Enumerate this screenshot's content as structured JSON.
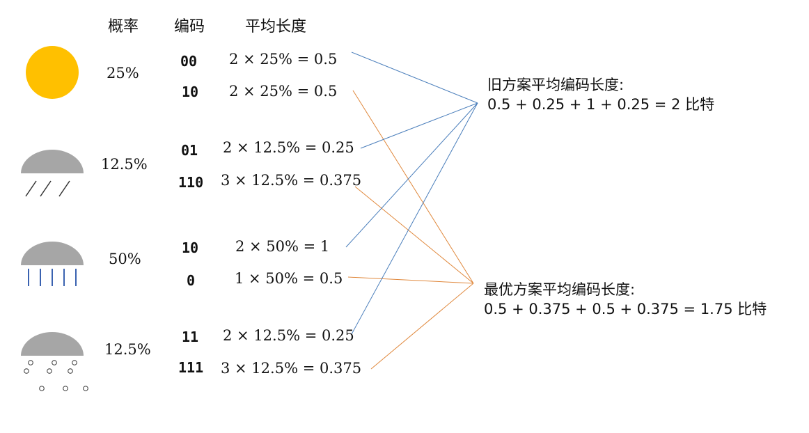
{
  "headers": {
    "probability": "概率",
    "code": "编码",
    "avg_length": "平均长度"
  },
  "weather": [
    {
      "icon": "sun-icon",
      "probability": "25%"
    },
    {
      "icon": "light-rain-icon",
      "probability": "12.5%"
    },
    {
      "icon": "heavy-rain-icon",
      "probability": "50%"
    },
    {
      "icon": "snow-icon",
      "probability": "12.5%"
    }
  ],
  "rows": [
    {
      "code": "00",
      "formula": "2 × 25% = 0.5",
      "scheme": "old"
    },
    {
      "code": "10",
      "formula": "2 × 25% = 0.5",
      "scheme": "optimal"
    },
    {
      "code": "01",
      "formula": "2 × 12.5% = 0.25",
      "scheme": "old"
    },
    {
      "code": "110",
      "formula": "3 × 12.5% = 0.375",
      "scheme": "optimal"
    },
    {
      "code": "10",
      "formula": "2 × 50% = 1",
      "scheme": "old"
    },
    {
      "code": "0",
      "formula": "1 × 50% = 0.5",
      "scheme": "optimal"
    },
    {
      "code": "11",
      "formula": "2 × 12.5% = 0.25",
      "scheme": "old"
    },
    {
      "code": "111",
      "formula": "3 × 12.5% = 0.375",
      "scheme": "optimal"
    }
  ],
  "old_scheme": {
    "title": "旧方案平均编码长度:",
    "equation": "0.5 + 0.25 + 1 + 0.25 = 2 比特"
  },
  "optimal_scheme": {
    "title": "最优方案平均编码长度:",
    "equation": "0.5 + 0.375 + 0.5 + 0.375 = 1.75 比特"
  },
  "colors": {
    "old_line": "#4a7ebb",
    "optimal_line": "#e0883c",
    "sun": "#ffc000",
    "cloud": "#a6a6a6",
    "heavy_rain": "#3a62b0",
    "precip": "#333333"
  }
}
